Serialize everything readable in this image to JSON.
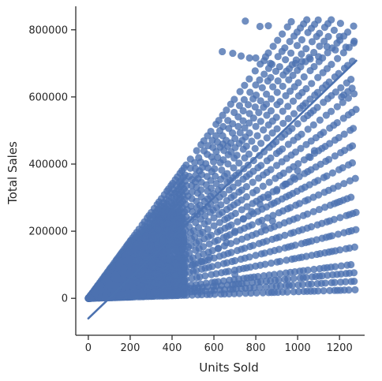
{
  "chart_data": {
    "type": "scatter",
    "title": "",
    "xlabel": "Units Sold",
    "ylabel": "Total Sales",
    "xlim": [
      -60,
      1320
    ],
    "ylim": [
      -110000,
      870000
    ],
    "x_ticks": [
      0,
      200,
      400,
      600,
      800,
      1000,
      1200
    ],
    "y_ticks": [
      0,
      200000,
      400000,
      600000,
      800000
    ],
    "x_tick_labels": [
      "0",
      "200",
      "400",
      "600",
      "800",
      "1000",
      "1200"
    ],
    "y_tick_labels": [
      "0",
      "200000",
      "400000",
      "600000",
      "800000"
    ],
    "grid": false,
    "legend": "none",
    "colors": {
      "points": "#4c72b0",
      "regression_line": "#4c72b0"
    },
    "price_levels": [
      850,
      795,
      755,
      715,
      680,
      640,
      600,
      560,
      520,
      480,
      440,
      400,
      360,
      320,
      280,
      240,
      200,
      160,
      120,
      80,
      60,
      40,
      20
    ],
    "dense_region_x_max": 460,
    "series": [
      {
        "kind": "points",
        "points": [
          [
            750,
            826000
          ],
          [
            820,
            810000
          ],
          [
            860,
            812000
          ],
          [
            640,
            735000
          ],
          [
            690,
            730000
          ],
          [
            730,
            722000
          ],
          [
            770,
            716000
          ],
          [
            800,
            716000
          ],
          [
            840,
            708000
          ],
          [
            870,
            700000
          ],
          [
            1200,
            780000
          ],
          [
            1270,
            766000
          ],
          [
            1230,
            748000
          ],
          [
            1140,
            750000
          ],
          [
            1180,
            740000
          ],
          [
            1100,
            720000
          ],
          [
            1060,
            713000
          ],
          [
            1020,
            706000
          ],
          [
            990,
            700000
          ],
          [
            960,
            684000
          ],
          [
            1210,
            600000
          ],
          [
            1240,
            616000
          ],
          [
            1220,
            606000
          ],
          [
            1260,
            626000
          ],
          [
            1080,
            440000
          ],
          [
            1060,
            420000
          ],
          [
            1000,
            380000
          ],
          [
            980,
            360000
          ],
          [
            940,
            340000
          ],
          [
            900,
            320000
          ],
          [
            860,
            300000
          ],
          [
            820,
            280000
          ],
          [
            780,
            258000
          ],
          [
            740,
            236000
          ],
          [
            880,
            230000
          ],
          [
            840,
            214000
          ],
          [
            700,
            200000
          ],
          [
            660,
            166000
          ],
          [
            620,
            148000
          ],
          [
            580,
            122000
          ],
          [
            540,
            110000
          ],
          [
            500,
            100000
          ],
          [
            700,
            72000
          ],
          [
            420,
            40000
          ],
          [
            380,
            32000
          ],
          [
            320,
            22000
          ],
          [
            260,
            12000
          ],
          [
            220,
            8000
          ],
          [
            150,
            4000
          ],
          [
            80,
            2000
          ],
          [
            10,
            0
          ],
          [
            5,
            500
          ]
        ]
      },
      {
        "kind": "regression",
        "x": [
          0,
          1280
        ],
        "y": [
          -60000,
          708000
        ]
      }
    ]
  }
}
